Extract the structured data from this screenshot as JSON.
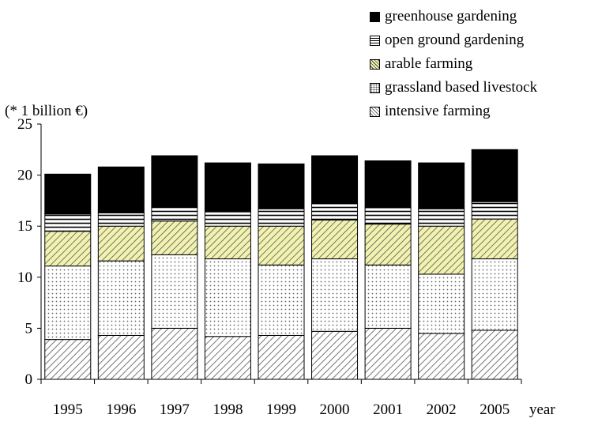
{
  "chart_data": {
    "type": "bar",
    "stacked": true,
    "unit_label": "(* 1 billion €)",
    "xlabel": "year",
    "ylabel": "",
    "ylim": [
      0,
      25
    ],
    "yticks": [
      "0",
      "5",
      "10",
      "15",
      "20",
      "25"
    ],
    "categories": [
      "1995",
      "1996",
      "1997",
      "1998",
      "1999",
      "2000",
      "2001",
      "2002",
      "2005"
    ],
    "legend_position": "top-right",
    "grid": false,
    "series": [
      {
        "name": "intensive farming",
        "pattern": "diagonal-hatch",
        "color": "#777777",
        "values": [
          3.9,
          4.3,
          5.0,
          4.2,
          4.3,
          4.7,
          5.0,
          4.5,
          4.8
        ]
      },
      {
        "name": "grassland based livestock",
        "pattern": "dots",
        "color": "#888888",
        "values": [
          7.2,
          7.3,
          7.2,
          7.6,
          6.9,
          7.1,
          6.2,
          5.8,
          7.0
        ]
      },
      {
        "name": "arable farming",
        "pattern": "diagonal-hatch-yellow",
        "color": "#f2f2b0",
        "values": [
          3.4,
          3.4,
          3.3,
          3.2,
          3.8,
          3.8,
          4.0,
          4.7,
          3.9
        ]
      },
      {
        "name": "open ground gardening",
        "pattern": "horizontal-lines",
        "color": "#000000",
        "values": [
          1.7,
          1.3,
          1.4,
          1.4,
          1.7,
          1.6,
          1.6,
          1.7,
          1.7
        ]
      },
      {
        "name": "greenhouse gardening",
        "pattern": "solid",
        "color": "#000000",
        "values": [
          3.9,
          4.5,
          5.0,
          4.8,
          4.4,
          4.7,
          4.6,
          4.5,
          5.1
        ]
      }
    ]
  }
}
